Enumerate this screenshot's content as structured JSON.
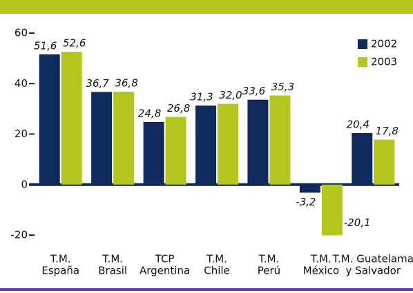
{
  "chart_data": {
    "type": "bar",
    "categories": [
      [
        "T.M.",
        "España"
      ],
      [
        "T.M.",
        "Brasil"
      ],
      [
        "TCP",
        "Argentina"
      ],
      [
        "T.M.",
        "Chile"
      ],
      [
        "T.M.",
        "Perú"
      ],
      [
        "T.M.",
        "México"
      ],
      [
        "T.M. Guatelama",
        "y Salvador"
      ]
    ],
    "series": [
      {
        "name": "2002",
        "color": "#0f2a5c",
        "values": [
          51.6,
          36.7,
          24.8,
          31.3,
          33.6,
          -3.2,
          20.4
        ],
        "value_labels": [
          "51,6",
          "36,7",
          "24,8",
          "31,3",
          "33,6",
          "-3,2",
          "20,4"
        ]
      },
      {
        "name": "2003",
        "color": "#b4c61e",
        "values": [
          52.6,
          36.8,
          26.8,
          32.0,
          35.3,
          -20.1,
          17.8
        ],
        "value_labels": [
          "52,6",
          "36,8",
          "26,8",
          "32,0",
          "35,3",
          "-20,1",
          "17,8"
        ]
      }
    ],
    "ylim": [
      -20,
      60
    ],
    "yticks": [
      -20,
      0,
      20,
      40,
      60
    ],
    "legend": "top-right"
  }
}
